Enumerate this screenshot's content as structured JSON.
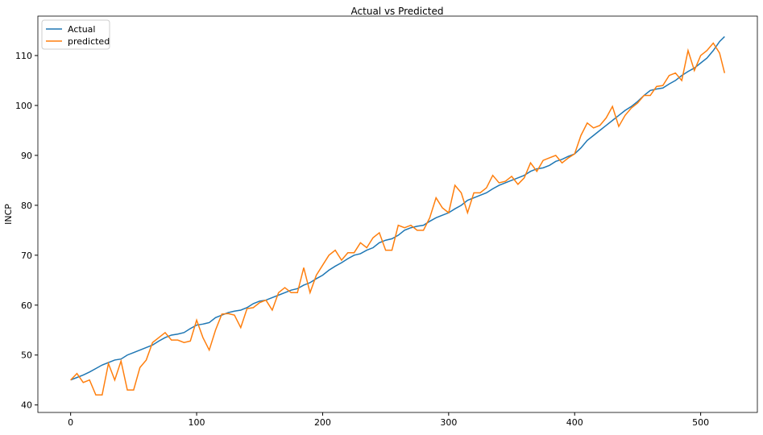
{
  "chart_data": {
    "type": "line",
    "title": "Actual vs Predicted",
    "y_label": "INCP",
    "x": [
      0,
      5,
      10,
      15,
      20,
      25,
      30,
      35,
      40,
      45,
      50,
      55,
      60,
      65,
      70,
      75,
      80,
      85,
      90,
      95,
      100,
      105,
      110,
      115,
      120,
      125,
      130,
      135,
      140,
      145,
      150,
      155,
      160,
      165,
      170,
      175,
      180,
      185,
      190,
      195,
      200,
      205,
      210,
      215,
      220,
      225,
      230,
      235,
      240,
      245,
      250,
      255,
      260,
      265,
      270,
      275,
      280,
      285,
      290,
      295,
      300,
      305,
      310,
      315,
      320,
      325,
      330,
      335,
      340,
      345,
      350,
      355,
      360,
      365,
      370,
      375,
      380,
      385,
      390,
      395,
      400,
      405,
      410,
      415,
      420,
      425,
      430,
      435,
      440,
      445,
      450,
      455,
      460,
      465,
      470,
      475,
      480,
      485,
      490,
      495,
      500,
      505,
      510,
      515,
      519
    ],
    "series": [
      {
        "name": "Actual",
        "color": "#1f77b4",
        "values": [
          45,
          45.5,
          46,
          46.6,
          47.3,
          48,
          48.5,
          49,
          49.2,
          50,
          50.5,
          51,
          51.5,
          52,
          52.8,
          53.5,
          54,
          54.2,
          54.5,
          55.3,
          56,
          56.2,
          56.5,
          57.5,
          58,
          58.5,
          58.8,
          59,
          59.5,
          60.3,
          60.8,
          61,
          61.5,
          62,
          62.5,
          63,
          63.3,
          64,
          64.5,
          65.3,
          66,
          67,
          67.8,
          68.5,
          69.3,
          70,
          70.3,
          71,
          71.5,
          72.5,
          73,
          73.3,
          74,
          75,
          75.5,
          75.8,
          76,
          76.8,
          77.5,
          78,
          78.5,
          79.3,
          80,
          81,
          81.5,
          82,
          82.5,
          83.3,
          84,
          84.5,
          85,
          85.5,
          86,
          86.8,
          87.3,
          87.5,
          88,
          88.8,
          89.2,
          89.8,
          90.3,
          91.5,
          93,
          94,
          95,
          96,
          97,
          98,
          99,
          99.8,
          100.8,
          102,
          103,
          103.3,
          103.5,
          104.3,
          105,
          106,
          106.8,
          107.5,
          108.5,
          109.5,
          111,
          112.8,
          113.8
        ]
      },
      {
        "name": "predicted",
        "color": "#ff7f0e",
        "values": [
          45,
          46.3,
          44.5,
          45,
          42,
          42,
          48.3,
          45,
          48.8,
          43,
          43,
          47.5,
          49,
          52.5,
          53.5,
          54.5,
          53,
          53,
          52.5,
          52.8,
          57,
          53.5,
          51,
          55,
          58.2,
          58.3,
          58,
          55.5,
          59.3,
          59.5,
          60.5,
          61,
          59,
          62.5,
          63.5,
          62.5,
          62.5,
          67.5,
          62.5,
          66,
          68,
          70,
          71,
          69,
          70.5,
          70.5,
          72.5,
          71.5,
          73.5,
          74.5,
          71,
          71,
          76,
          75.5,
          76,
          75,
          75,
          77.5,
          81.5,
          79.5,
          78.5,
          84,
          82.5,
          78.5,
          82.5,
          82.5,
          83.5,
          86,
          84.5,
          84.8,
          85.8,
          84.2,
          85.5,
          88.5,
          86.8,
          89,
          89.5,
          90,
          88.5,
          89.5,
          90.3,
          94,
          96.5,
          95.5,
          96,
          97.5,
          99.8,
          95.8,
          98,
          99.5,
          100.5,
          102,
          102,
          103.8,
          104,
          106,
          106.5,
          105,
          111,
          107,
          110,
          111,
          112.5,
          110.5,
          106.5
        ]
      }
    ],
    "xlim": [
      -26,
      545
    ],
    "ylim": [
      38.5,
      117.9
    ],
    "xticks": [
      0,
      100,
      200,
      300,
      400,
      500
    ],
    "yticks": [
      40,
      50,
      60,
      70,
      80,
      90,
      100,
      110
    ],
    "grid": false,
    "legend": "upper-left"
  }
}
